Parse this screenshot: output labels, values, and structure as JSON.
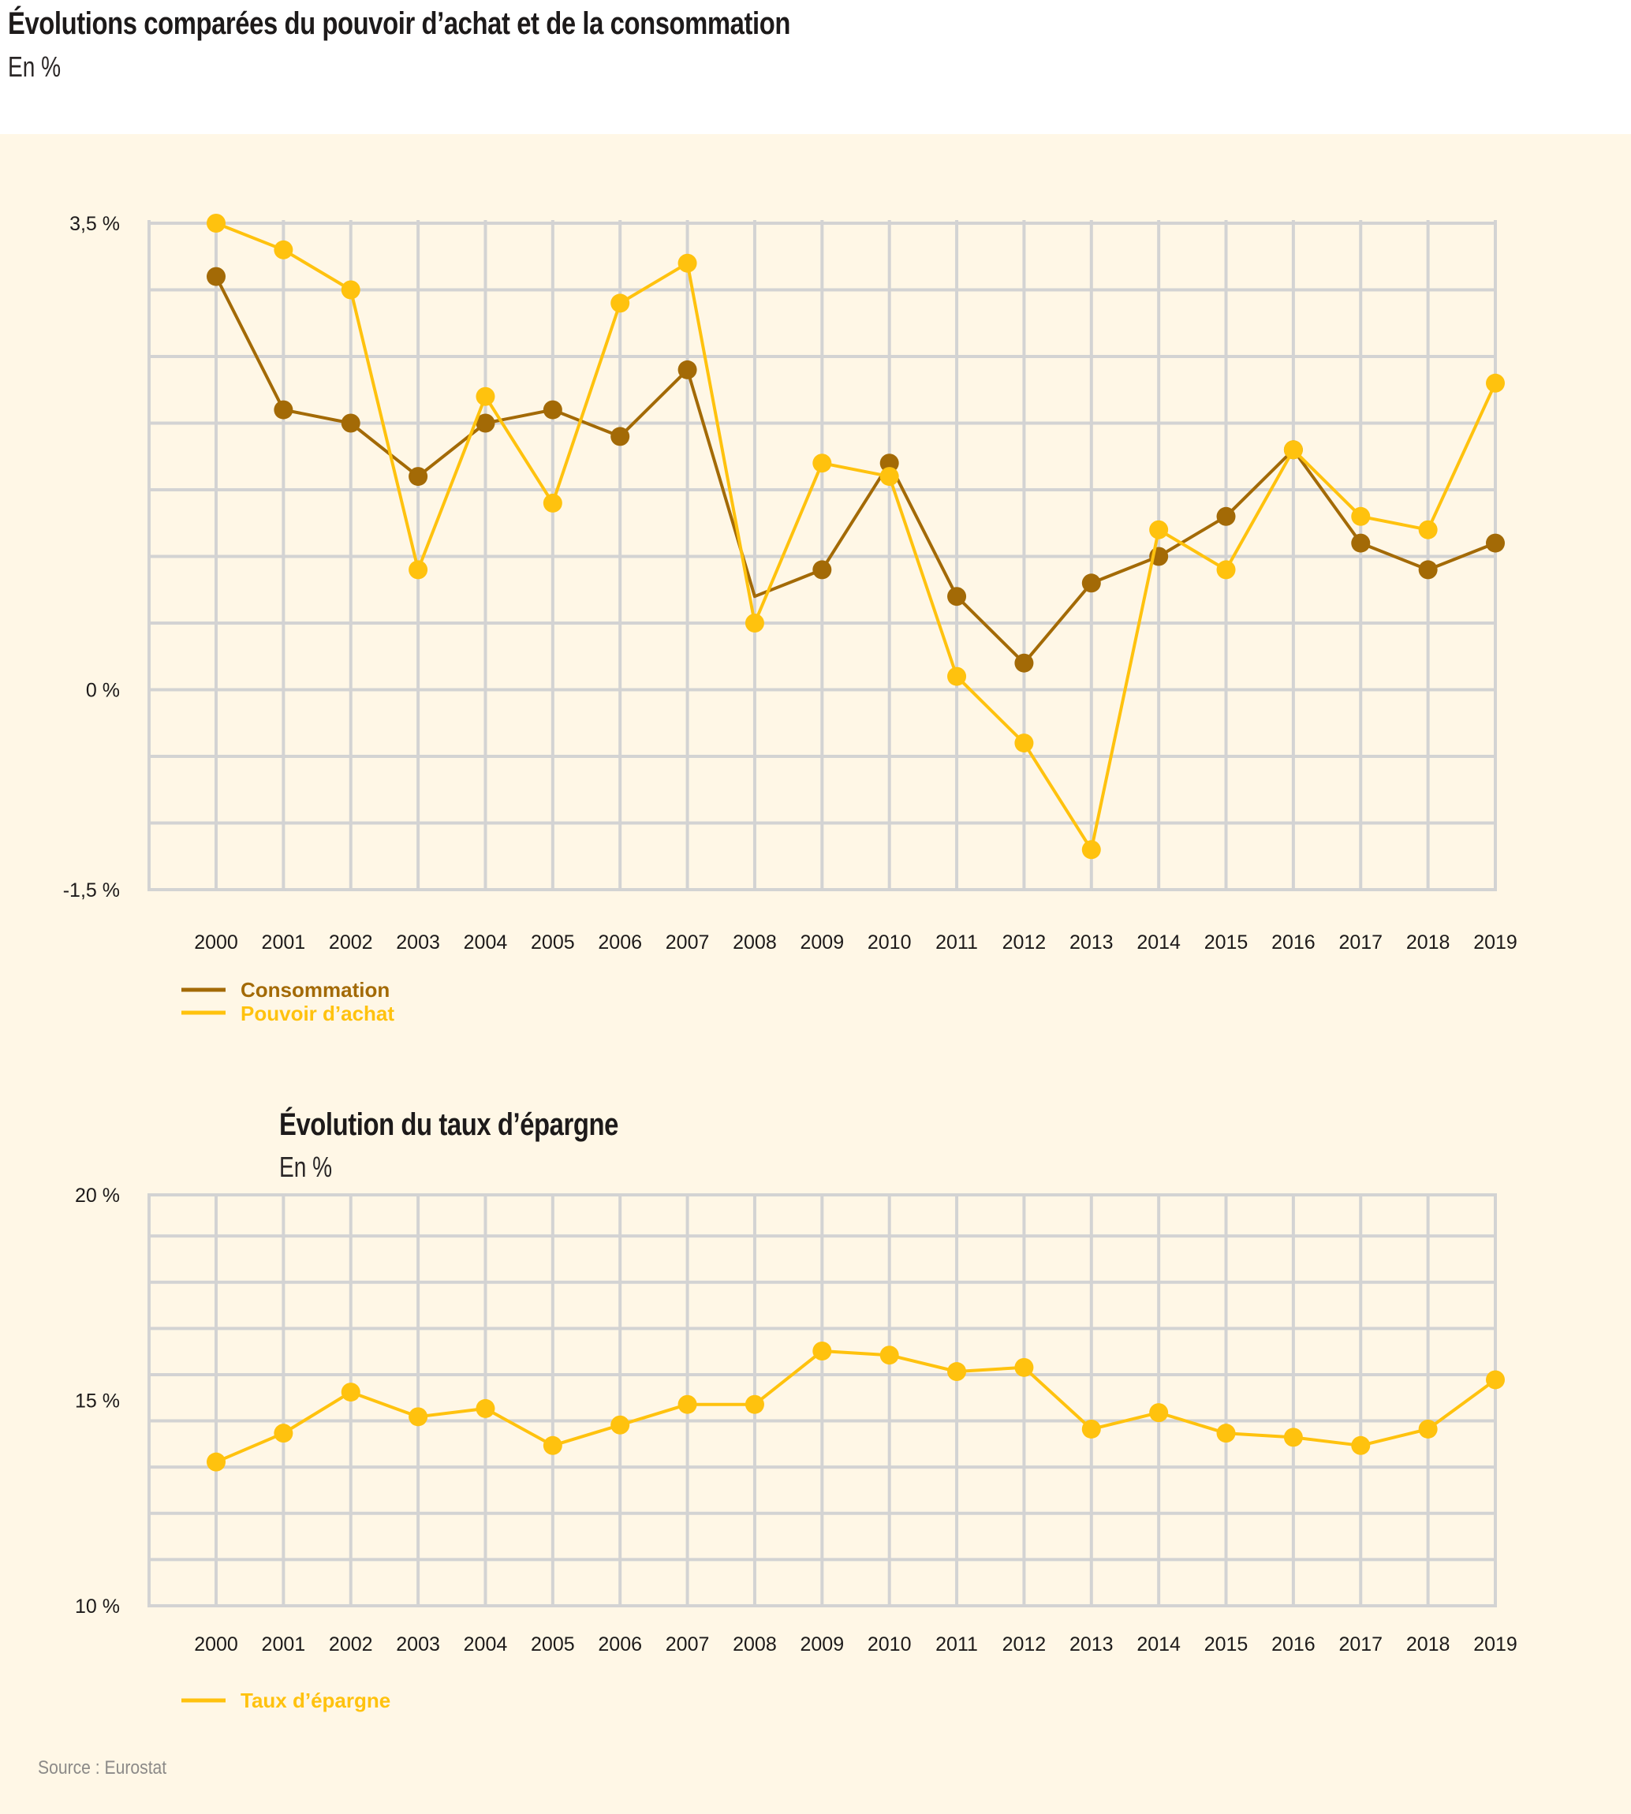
{
  "header": {
    "title": "Évolutions comparées du pouvoir d’achat et de la consommation",
    "subtitle": "En %"
  },
  "source": "Source : Eurostat",
  "colors": {
    "background": "#fff7e6",
    "grid": "#d3d3d3",
    "consommation": "#a36a06",
    "pouvoir_achat": "#ffc20e",
    "taux_epargne": "#ffc20e",
    "text": "#1d1a1a"
  },
  "chart_data": [
    {
      "type": "line",
      "title": "Évolutions comparées du pouvoir d’achat et de la consommation",
      "subtitle": "En %",
      "xlabel": "",
      "ylabel": "",
      "x": [
        "2000",
        "2001",
        "2002",
        "2003",
        "2004",
        "2005",
        "2006",
        "2007",
        "2008",
        "2009",
        "2010",
        "2011",
        "2012",
        "2013",
        "2014",
        "2015",
        "2016",
        "2017",
        "2018",
        "2019"
      ],
      "ylim": [
        -1.5,
        3.5
      ],
      "ygrid_step": 0.5,
      "yticks": [
        {
          "value": 3.5,
          "label": "3,5 %"
        },
        {
          "value": 0,
          "label": "0 %"
        },
        {
          "value": -1.5,
          "label": "-1,5 %"
        }
      ],
      "grid": true,
      "legend": "bottom-left",
      "series": [
        {
          "name": "Consommation",
          "color": "#a36a06",
          "values": [
            3.1,
            2.1,
            2.0,
            1.6,
            2.0,
            2.1,
            1.9,
            2.4,
            0.7,
            0.9,
            1.7,
            0.7,
            0.2,
            0.8,
            1.0,
            1.3,
            1.8,
            1.1,
            0.9,
            1.1
          ],
          "markers_hidden": [
            "2008"
          ]
        },
        {
          "name": "Pouvoir d’achat",
          "color": "#ffc20e",
          "values": [
            3.5,
            3.3,
            3.0,
            0.9,
            2.2,
            1.4,
            2.9,
            3.2,
            0.5,
            1.7,
            1.6,
            0.1,
            -0.4,
            -1.2,
            1.2,
            0.9,
            1.8,
            1.3,
            1.2,
            2.3
          ]
        }
      ]
    },
    {
      "type": "line",
      "title": "Évolution du taux d’épargne",
      "subtitle": "En %",
      "xlabel": "",
      "ylabel": "",
      "x": [
        "2000",
        "2001",
        "2002",
        "2003",
        "2004",
        "2005",
        "2006",
        "2007",
        "2008",
        "2009",
        "2010",
        "2011",
        "2012",
        "2013",
        "2014",
        "2015",
        "2016",
        "2017",
        "2018",
        "2019"
      ],
      "ylim": [
        10,
        20
      ],
      "yticks": [
        {
          "value": 20,
          "label": "20 %"
        },
        {
          "value": 15,
          "label": "15 %"
        },
        {
          "value": 10,
          "label": "10 %"
        }
      ],
      "grid": true,
      "legend": "bottom-left",
      "series": [
        {
          "name": "Taux d’épargne",
          "color": "#ffc20e",
          "values": [
            13.5,
            14.2,
            15.2,
            14.6,
            14.8,
            13.9,
            14.4,
            14.9,
            14.9,
            16.2,
            16.1,
            15.7,
            15.8,
            14.3,
            14.7,
            14.2,
            14.1,
            13.9,
            14.3,
            15.5
          ]
        }
      ]
    }
  ]
}
